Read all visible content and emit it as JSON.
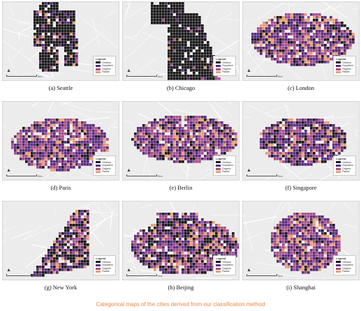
{
  "legend": {
    "title": "Legend",
    "items": [
      {
        "label": "Gridiron",
        "color": "#1a1a1a"
      },
      {
        "label": "Nopattern",
        "color": "#5a2e7f"
      },
      {
        "label": "Organic",
        "color": "#a8518b"
      },
      {
        "label": "Radial",
        "color": "#e6a071"
      }
    ],
    "scale_label": "5km"
  },
  "panels": [
    {
      "caption": "(a)  Seattle"
    },
    {
      "caption": "(b)  Chicago"
    },
    {
      "caption": "(c)  London"
    },
    {
      "caption": "(d)  Paris"
    },
    {
      "caption": "(e)  Berlin"
    },
    {
      "caption": "(f)  Singapore"
    },
    {
      "caption": "(g)  New York"
    },
    {
      "caption": "(h)  Beijing"
    },
    {
      "caption": "(i)  Shanghai"
    }
  ],
  "figure_caption": "Categorical maps of the cities derived from our classification method",
  "colors": {
    "background": "#ececec",
    "water": "#d9d9d9",
    "gridiron": "#1a1a1a",
    "nopattern": "#5a2e7f",
    "organic": "#a8518b",
    "radial": "#e6a071",
    "caption": "#e8884a"
  }
}
